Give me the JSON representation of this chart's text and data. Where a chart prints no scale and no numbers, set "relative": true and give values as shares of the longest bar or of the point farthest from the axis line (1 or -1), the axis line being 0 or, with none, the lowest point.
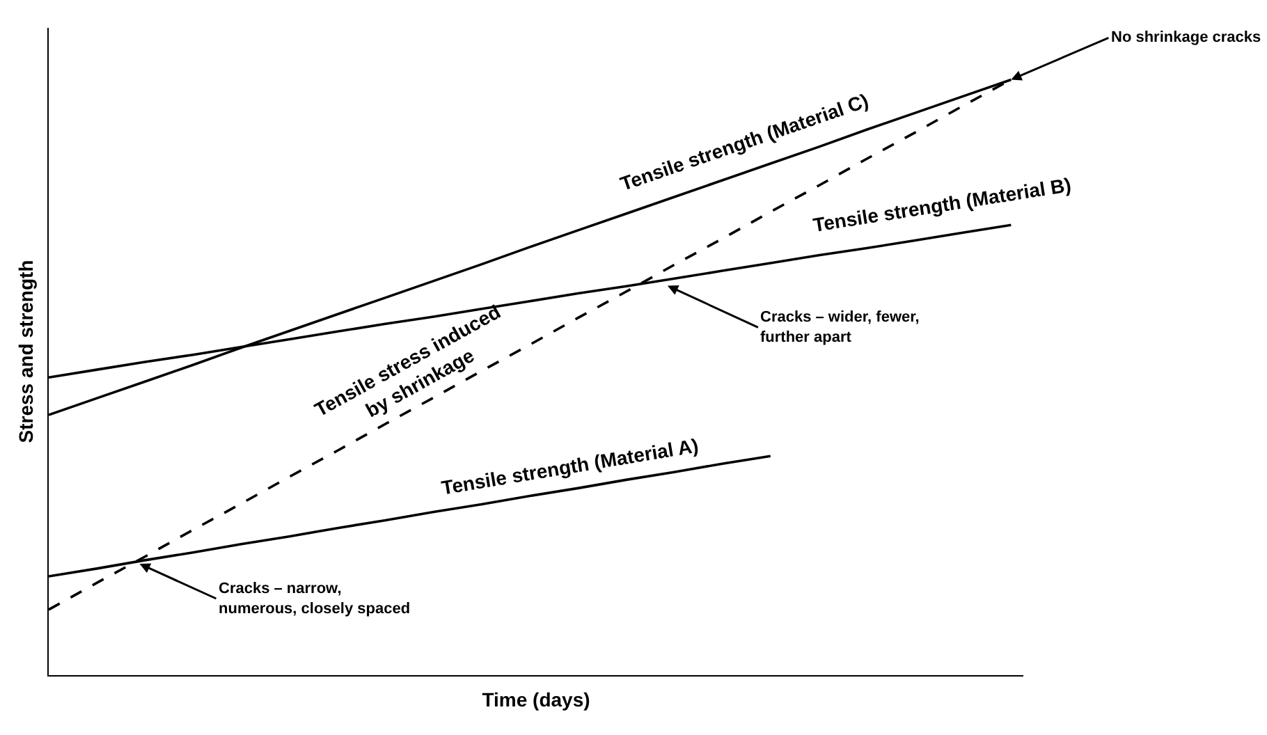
{
  "chart_data": {
    "type": "line",
    "relative": true,
    "xlabel": "Time (days)",
    "ylabel": "Stress and strength",
    "tick_labels": false,
    "legend": false,
    "marker": "none",
    "categories": [
      null,
      null,
      null,
      null,
      null,
      null,
      null,
      null,
      null,
      null,
      null,
      null,
      null,
      null,
      null,
      null,
      null,
      null,
      null,
      null,
      null
    ],
    "series": [
      {
        "name": "Tensile strength (Material A)",
        "color": "#000000",
        "line_style": "solid",
        "values": [
          0.166,
          0.179,
          0.193,
          0.206,
          0.22,
          0.233,
          0.247,
          0.26,
          0.274,
          0.287,
          0.301,
          0.314,
          0.328,
          0.341,
          0.355,
          0.368,
          null,
          null,
          null,
          null,
          null
        ]
      },
      {
        "name": "Tensile strength (Material B)",
        "color": "#000000",
        "line_style": "solid",
        "values": [
          0.5,
          0.513,
          0.526,
          0.538,
          0.551,
          0.564,
          0.577,
          0.59,
          0.602,
          0.615,
          0.628,
          0.641,
          0.653,
          0.666,
          0.679,
          0.692,
          0.705,
          0.717,
          0.73,
          0.743,
          0.756
        ]
      },
      {
        "name": "Tensile strength (Material C)",
        "color": "#000000",
        "line_style": "solid",
        "values": [
          0.437,
          0.465,
          0.493,
          0.521,
          0.55,
          0.578,
          0.606,
          0.634,
          0.662,
          0.69,
          0.719,
          0.747,
          0.775,
          0.803,
          0.831,
          0.859,
          0.887,
          0.916,
          0.944,
          0.972,
          1.0
        ]
      },
      {
        "name": "Tensile stress induced\nby shrinkage",
        "color": "#000000",
        "line_style": "dashed",
        "values": [
          0.11,
          0.155,
          0.199,
          0.244,
          0.288,
          0.333,
          0.377,
          0.422,
          0.466,
          0.511,
          0.555,
          0.6,
          0.644,
          0.689,
          0.733,
          0.778,
          0.822,
          0.867,
          0.911,
          0.956,
          1.0
        ]
      }
    ],
    "annotations": [
      "No shrinkage cracks",
      "Cracks – wider, fewer,\nfurther apart",
      "Cracks – narrow,\nnumerous, closely spaced"
    ]
  }
}
